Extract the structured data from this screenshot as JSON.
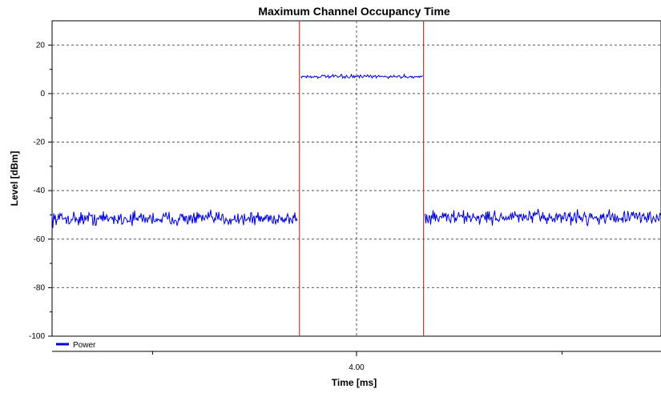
{
  "chart_data": {
    "type": "line",
    "title": "Maximum Channel Occupancy Time",
    "xlabel": "Time [ms]",
    "ylabel": "Level [dBm]",
    "ylim": [
      -100,
      30
    ],
    "xlim": [
      0,
      8.0
    ],
    "y_ticks": [
      20,
      0,
      -20,
      -40,
      -60,
      -80,
      -100
    ],
    "x_ticks": [
      {
        "value": 4.0,
        "label": "4.00"
      }
    ],
    "grid": true,
    "legend": "bottom-left",
    "series": [
      {
        "name": "Power",
        "color": "#0000dd",
        "segments": [
          {
            "x_start": 0.0,
            "x_end": 3.23,
            "mean": -51.5,
            "noise": 1.4
          },
          {
            "x_start": 3.27,
            "x_end": 4.87,
            "mean": 7.0,
            "noise": 0.35
          },
          {
            "x_start": 4.9,
            "x_end": 8.0,
            "mean": -51.0,
            "noise": 1.4
          }
        ]
      }
    ],
    "markers": [
      {
        "x": 3.25,
        "color": "#e03030"
      },
      {
        "x": 4.88,
        "color": "#e03030"
      }
    ]
  }
}
